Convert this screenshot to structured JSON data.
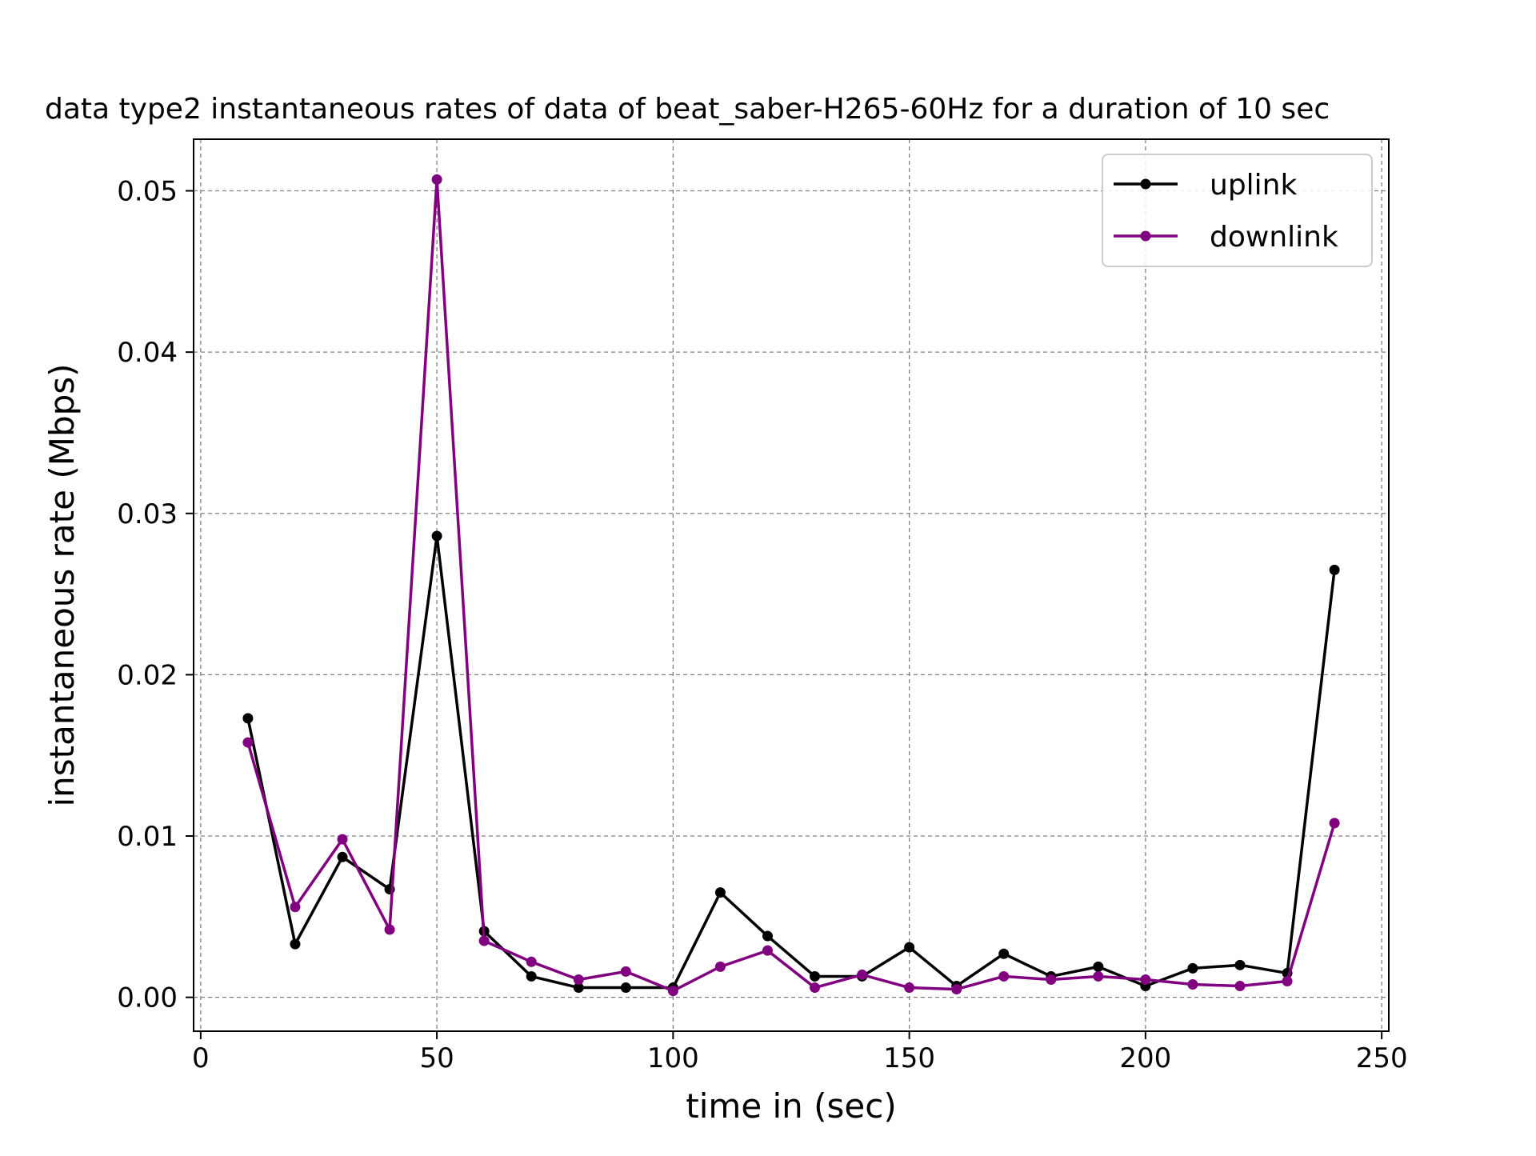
{
  "chart_data": {
    "type": "line",
    "title": "data type2 instantaneous rates of data of beat_saber-H265-60Hz for a duration of 10 sec",
    "xlabel": "time in (sec)",
    "ylabel": "instantaneous rate (Mbps)",
    "xlim": [
      -1.5,
      251.5
    ],
    "ylim": [
      -0.0021,
      0.0532
    ],
    "xticks": [
      0,
      50,
      100,
      150,
      200,
      250
    ],
    "xtick_labels": [
      "0",
      "50",
      "100",
      "150",
      "200",
      "250"
    ],
    "yticks": [
      0.0,
      0.01,
      0.02,
      0.03,
      0.04,
      0.05
    ],
    "ytick_labels": [
      "0.00",
      "0.01",
      "0.02",
      "0.03",
      "0.04",
      "0.05"
    ],
    "grid": true,
    "legend_position": "top-right",
    "x": [
      10,
      20,
      30,
      40,
      50,
      60,
      70,
      80,
      90,
      100,
      110,
      120,
      130,
      140,
      150,
      160,
      170,
      180,
      190,
      200,
      210,
      220,
      230,
      240
    ],
    "series": [
      {
        "name": "uplink",
        "color": "#000000",
        "values": [
          0.0173,
          0.0033,
          0.0087,
          0.0067,
          0.0286,
          0.0041,
          0.0013,
          0.0006,
          0.0006,
          0.0006,
          0.0065,
          0.0038,
          0.0013,
          0.0013,
          0.0031,
          0.0007,
          0.0027,
          0.0013,
          0.0019,
          0.0007,
          0.0018,
          0.002,
          0.0015,
          0.0265
        ]
      },
      {
        "name": "downlink",
        "color": "#800080",
        "values": [
          0.0158,
          0.0056,
          0.0098,
          0.0042,
          0.0507,
          0.0035,
          0.0022,
          0.0011,
          0.0016,
          0.0004,
          0.0019,
          0.0029,
          0.0006,
          0.0014,
          0.0006,
          0.0005,
          0.0013,
          0.0011,
          0.0013,
          0.0011,
          0.0008,
          0.0007,
          0.001,
          0.0108
        ]
      }
    ]
  }
}
